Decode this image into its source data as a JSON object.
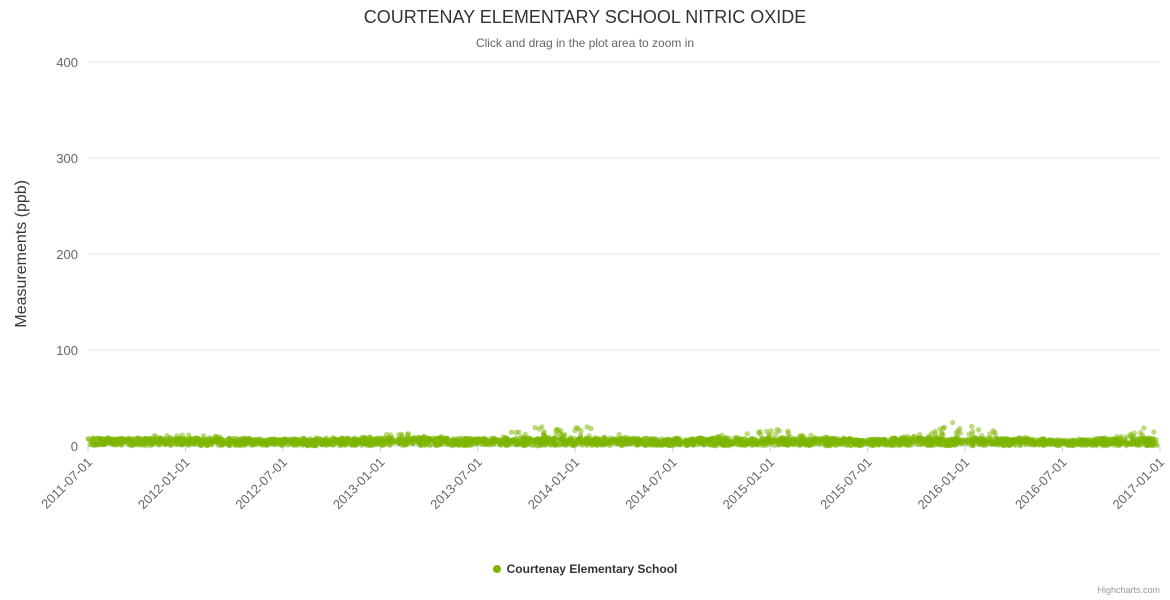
{
  "credits": "Highcharts.com",
  "chart_data": {
    "type": "scatter",
    "title": "COURTENAY ELEMENTARY SCHOOL NITRIC OXIDE",
    "subtitle": "Click and drag in the plot area to zoom in",
    "ylabel": "Measurements (ppb)",
    "ylim": [
      0,
      400
    ],
    "yticks": [
      0,
      100,
      200,
      300,
      400
    ],
    "xticks": [
      "2011-07-01",
      "2012-01-01",
      "2012-07-01",
      "2013-01-01",
      "2013-07-01",
      "2014-01-01",
      "2014-07-01",
      "2015-01-01",
      "2015-07-01",
      "2016-01-01",
      "2016-07-01",
      "2017-01-01"
    ],
    "xtick_interval_months": 6,
    "grid": true,
    "legend_position": "bottom",
    "series": [
      {
        "name": "Courtenay Elementary School",
        "color": "#7cb500",
        "marker_opacity": 0.5,
        "months_start": "2011-07",
        "monthly_max_ppb": [
          8,
          8,
          9,
          10,
          11,
          12,
          13,
          12,
          10,
          8,
          7,
          7,
          7,
          8,
          8,
          9,
          9,
          12,
          14,
          13,
          12,
          10,
          8,
          8,
          9,
          10,
          18,
          22,
          20,
          18,
          22,
          18,
          14,
          10,
          8,
          7,
          8,
          8,
          10,
          12,
          14,
          16,
          18,
          16,
          12,
          10,
          8,
          7,
          7,
          8,
          10,
          14,
          20,
          28,
          24,
          18,
          12,
          9,
          7,
          6,
          6,
          7,
          8,
          10,
          14,
          20,
          24
        ],
        "typical_band_max_ppb": 8
      }
    ]
  }
}
